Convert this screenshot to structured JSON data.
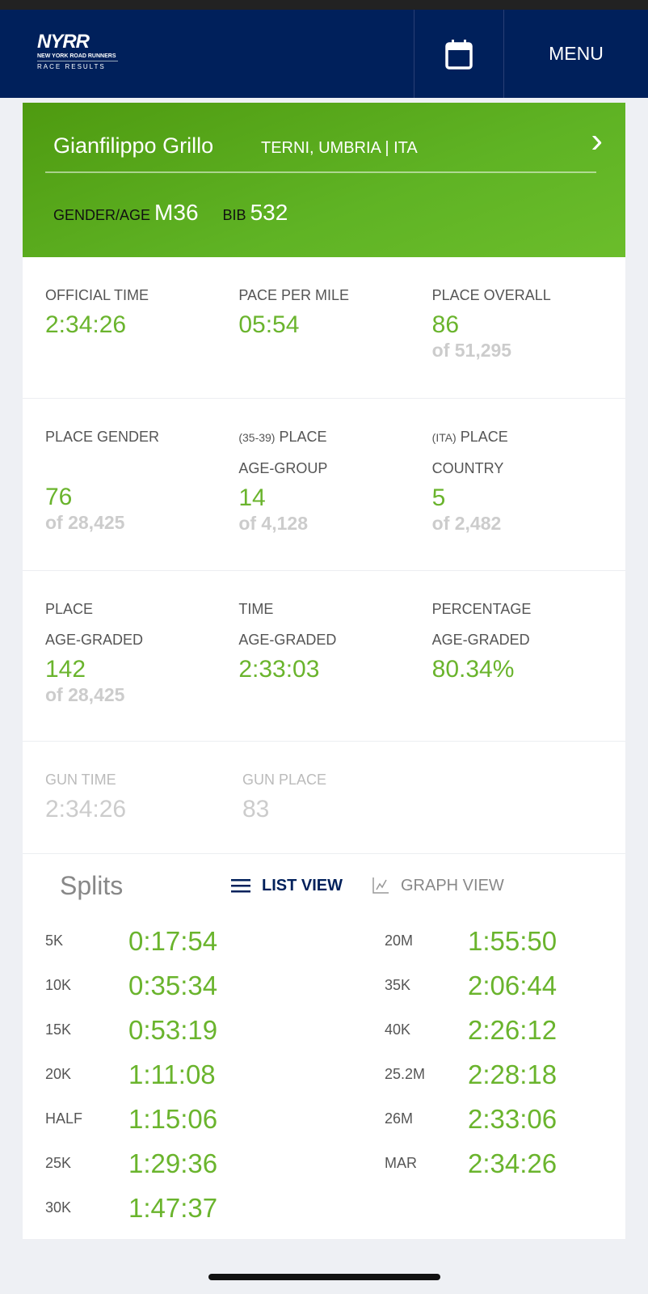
{
  "header": {
    "logo_line1": "NYRR",
    "logo_line2": "NEW YORK ROAD RUNNERS",
    "logo_line3": "RACE RESULTS",
    "menu": "MENU"
  },
  "runner": {
    "name": "Gianfilippo Grillo",
    "location": "TERNI, UMBRIA | ITA",
    "gender_age_label": "GENDER/AGE",
    "gender_age": "M36",
    "bib_label": "BIB",
    "bib": "532"
  },
  "stats": [
    [
      {
        "label": "OFFICIAL TIME",
        "value": "2:34:26"
      },
      {
        "label": "PACE PER MILE",
        "value": "05:54"
      },
      {
        "label": "PLACE OVERALL",
        "value": "86",
        "of": "of 51,295"
      }
    ],
    [
      {
        "label": "PLACE GENDER",
        "label2": "",
        "value": "76",
        "of": "of 28,425"
      },
      {
        "prefix": "(35-39)",
        "label": "PLACE",
        "label2": "AGE-GROUP",
        "value": "14",
        "of": "of 4,128"
      },
      {
        "prefix": "(ITA)",
        "label": "PLACE",
        "label2": "COUNTRY",
        "value": "5",
        "of": "of 2,482"
      }
    ],
    [
      {
        "label": "PLACE",
        "label2": "AGE-GRADED",
        "value": "142",
        "of": "of 28,425"
      },
      {
        "label": "TIME",
        "label2": "AGE-GRADED",
        "value": "2:33:03"
      },
      {
        "label": "PERCENTAGE",
        "label2": "AGE-GRADED",
        "value": "80.34%"
      }
    ]
  ],
  "gun": [
    {
      "label": "GUN TIME",
      "value": "2:34:26"
    },
    {
      "label": "GUN PLACE",
      "value": "83"
    }
  ],
  "splits": {
    "title": "Splits",
    "list_view": "LIST VIEW",
    "graph_view": "GRAPH VIEW",
    "left": [
      [
        "5K",
        "0:17:54"
      ],
      [
        "10K",
        "0:35:34"
      ],
      [
        "15K",
        "0:53:19"
      ],
      [
        "20K",
        "1:11:08"
      ],
      [
        "HALF",
        "1:15:06"
      ],
      [
        "25K",
        "1:29:36"
      ],
      [
        "30K",
        "1:47:37"
      ]
    ],
    "right": [
      [
        "20M",
        "1:55:50"
      ],
      [
        "35K",
        "2:06:44"
      ],
      [
        "40K",
        "2:26:12"
      ],
      [
        "25.2M",
        "2:28:18"
      ],
      [
        "26M",
        "2:33:06"
      ],
      [
        "MAR",
        "2:34:26"
      ]
    ]
  },
  "colors": {
    "navy": "#00205b",
    "green": "#6ab42d"
  }
}
